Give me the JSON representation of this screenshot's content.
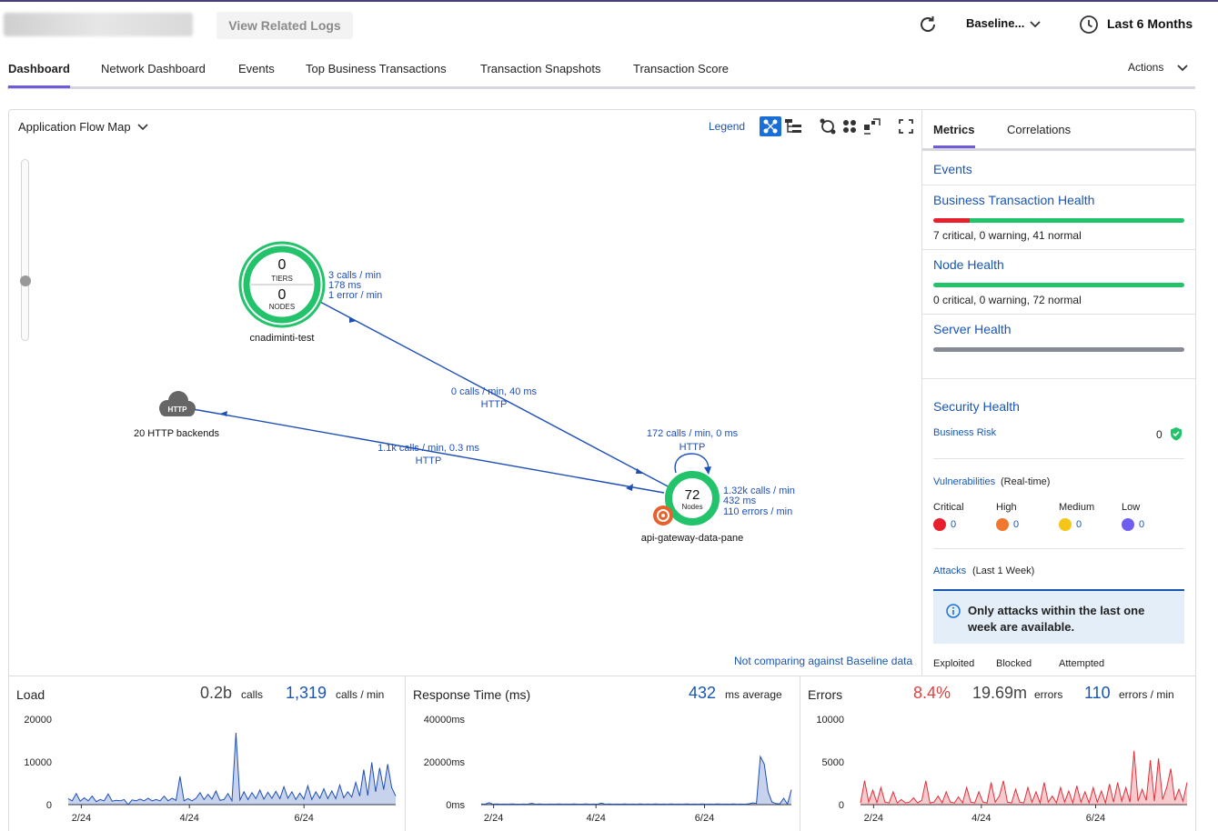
{
  "topbar": {
    "view_logs_label": "View Related Logs",
    "baseline_label": "Baseline...",
    "time_range": "Last 6 Months"
  },
  "tabs": [
    {
      "label": "Dashboard",
      "active": true
    },
    {
      "label": "Network Dashboard"
    },
    {
      "label": "Events"
    },
    {
      "label": "Top Business Transactions"
    },
    {
      "label": "Transaction Snapshots"
    },
    {
      "label": "Transaction Score"
    }
  ],
  "actions_label": "Actions",
  "flowmap": {
    "title": "Application Flow Map",
    "legend_label": "Legend",
    "not_comparing": "Not comparing against Baseline data",
    "nodes": {
      "tier_app": {
        "tiers_value": "0",
        "tiers_label": "TIERS",
        "nodes_value": "0",
        "nodes_label": "NODES",
        "name": "cnadiminti-test",
        "stats": [
          "3 calls / min",
          "178 ms",
          "1 error / min"
        ]
      },
      "backend": {
        "badge": "HTTP",
        "name": "20 HTTP backends"
      },
      "gateway": {
        "count": "72",
        "count_label": "Nodes",
        "name": "api-gateway-data-pane",
        "stats": [
          "1.32k calls / min",
          "432 ms",
          "110 errors / min"
        ]
      }
    },
    "edges": {
      "tier_to_gateway": [
        "0 calls / min, 40 ms",
        "HTTP"
      ],
      "gateway_to_backend": [
        "1.1k calls / min, 0.3 ms",
        "HTTP"
      ],
      "gateway_self": [
        "172 calls / min, 0 ms",
        "HTTP"
      ]
    }
  },
  "right_pane": {
    "tabs": [
      {
        "label": "Metrics",
        "active": true
      },
      {
        "label": "Correlations"
      }
    ],
    "events_label": "Events",
    "bt_health": {
      "label": "Business Transaction Health",
      "summary": "7 critical, 0 warning, 41 normal",
      "critical": 7,
      "warning": 0,
      "normal": 41
    },
    "node_health": {
      "label": "Node Health",
      "summary": "0 critical, 0 warning, 72 normal",
      "critical": 0,
      "warning": 0,
      "normal": 72
    },
    "server_health": {
      "label": "Server Health"
    },
    "security": {
      "label": "Security Health",
      "business_risk_label": "Business Risk",
      "business_risk_value": "0",
      "vulnerabilities_label": "Vulnerabilities",
      "vulnerabilities_note": "(Real-time)",
      "severities": [
        {
          "label": "Critical",
          "value": "0",
          "color": "#e8202e"
        },
        {
          "label": "High",
          "value": "0",
          "color": "#f0782e"
        },
        {
          "label": "Medium",
          "value": "0",
          "color": "#f5c518"
        },
        {
          "label": "Low",
          "value": "0",
          "color": "#6f5ef0"
        }
      ],
      "attacks_label": "Attacks",
      "attacks_note": "(Last 1 Week)",
      "attacks_info": "Only attacks within the last one week are available.",
      "attack_columns": [
        "Exploited",
        "Blocked",
        "Attempted"
      ]
    }
  },
  "charts_header": {
    "load": {
      "title": "Load",
      "total": "0.2b",
      "total_unit": "calls",
      "rate": "1,319",
      "rate_unit": "calls / min"
    },
    "response": {
      "title": "Response Time (ms)",
      "avg": "432",
      "avg_unit": "ms average"
    },
    "errors": {
      "title": "Errors",
      "pct": "8.4%",
      "total": "19.69m",
      "total_unit": "errors",
      "rate": "110",
      "rate_unit": "errors / min"
    }
  },
  "chart_data": [
    {
      "type": "area",
      "title": "Load",
      "y_ticks": [
        "20000",
        "10000",
        "0"
      ],
      "ylim": [
        0,
        20000
      ],
      "x_ticks": [
        "2/24",
        "4/24",
        "6/24"
      ],
      "color": "#1f4fb5",
      "values": [
        1400,
        900,
        2600,
        800,
        1600,
        900,
        2000,
        700,
        1200,
        900,
        2500,
        800,
        1000,
        900,
        1200,
        0,
        1100,
        900,
        1300,
        900,
        1500,
        900,
        1200,
        900,
        2000,
        900,
        1500,
        1000,
        6600,
        900,
        1400,
        900,
        1500,
        2800,
        1200,
        2400,
        1300,
        3200,
        1000,
        1200,
        2600,
        900,
        16800,
        1100,
        3000,
        1200,
        2800,
        1400,
        3400,
        1300,
        2900,
        1500,
        3100,
        1400,
        4200,
        1500,
        3000,
        1200,
        2700,
        1300,
        4400,
        1200,
        3000,
        1500,
        3700,
        1400,
        3200,
        1400,
        4600,
        1600,
        3000,
        1800,
        5200,
        2000,
        8200,
        2100,
        9900,
        3000,
        8600,
        3500,
        9500,
        4000,
        2000
      ]
    },
    {
      "type": "area",
      "title": "Response Time (ms)",
      "y_ticks": [
        "40000ms",
        "20000ms",
        "0ms"
      ],
      "ylim": [
        0,
        40000
      ],
      "x_ticks": [
        "2/24",
        "4/24",
        "6/24"
      ],
      "color": "#1f4fb5",
      "values": [
        300,
        200,
        900,
        200,
        300,
        200,
        250,
        200,
        300,
        200,
        200,
        250,
        200,
        600,
        200,
        300,
        200,
        200,
        250,
        200,
        300,
        200,
        250,
        200,
        300,
        200,
        200,
        300,
        200,
        250,
        200,
        700,
        200,
        300,
        200,
        250,
        200,
        300,
        200,
        250,
        200,
        300,
        200,
        250,
        200,
        300,
        200,
        250,
        200,
        300,
        200,
        250,
        200,
        300,
        200,
        250,
        200,
        300,
        200,
        250,
        200,
        300,
        200,
        250,
        200,
        300,
        200,
        250,
        200,
        400,
        800,
        600,
        22500,
        19000,
        6000,
        1200,
        500,
        300,
        3000,
        200,
        7000
      ]
    },
    {
      "type": "area",
      "title": "Errors",
      "y_ticks": [
        "10000",
        "5000",
        "0"
      ],
      "ylim": [
        0,
        10000
      ],
      "x_ticks": [
        "2/24",
        "4/24",
        "6/24"
      ],
      "color": "#e0303a",
      "values": [
        200,
        2800,
        300,
        1700,
        250,
        2000,
        300,
        200,
        1500,
        200,
        600,
        200,
        300,
        800,
        200,
        500,
        2800,
        200,
        300,
        1000,
        200,
        1500,
        300,
        200,
        900,
        200,
        2000,
        300,
        200,
        1500,
        300,
        200,
        2600,
        300,
        1000,
        2800,
        300,
        200,
        1800,
        300,
        200,
        2000,
        300,
        1500,
        200,
        2600,
        300,
        1000,
        200,
        2000,
        300,
        1600,
        200,
        2200,
        300,
        1500,
        200,
        2000,
        300,
        1600,
        200,
        2400,
        300,
        2600,
        400,
        2000,
        300,
        6300,
        400,
        1800,
        500,
        5200,
        400,
        5400,
        600,
        2000,
        4200,
        500,
        1800,
        400,
        2600
      ]
    }
  ]
}
